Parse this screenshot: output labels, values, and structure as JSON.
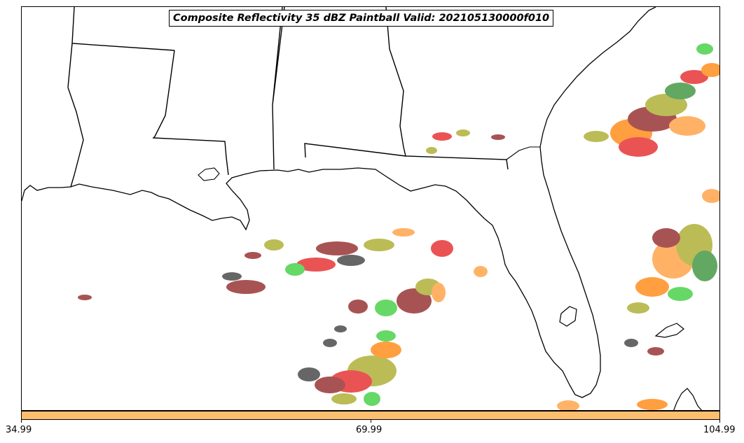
{
  "title": "Composite Reflectivity 35 dBZ Paintball Valid: 202105130000f010",
  "colorbar": {
    "color": "#fdbf6f",
    "ticks": [
      "34.99",
      "69.99",
      "104.99"
    ]
  },
  "paintball_colors": [
    "#e31a1c",
    "#ff7f00",
    "#33cc33",
    "#a6a61f",
    "#8b1a1a",
    "#333333",
    "#ff9933",
    "#2e8b2e"
  ],
  "map": {
    "region": "Southeastern United States and Gulf of Mexico",
    "outline_color": "#000000",
    "background": "#ffffff"
  }
}
